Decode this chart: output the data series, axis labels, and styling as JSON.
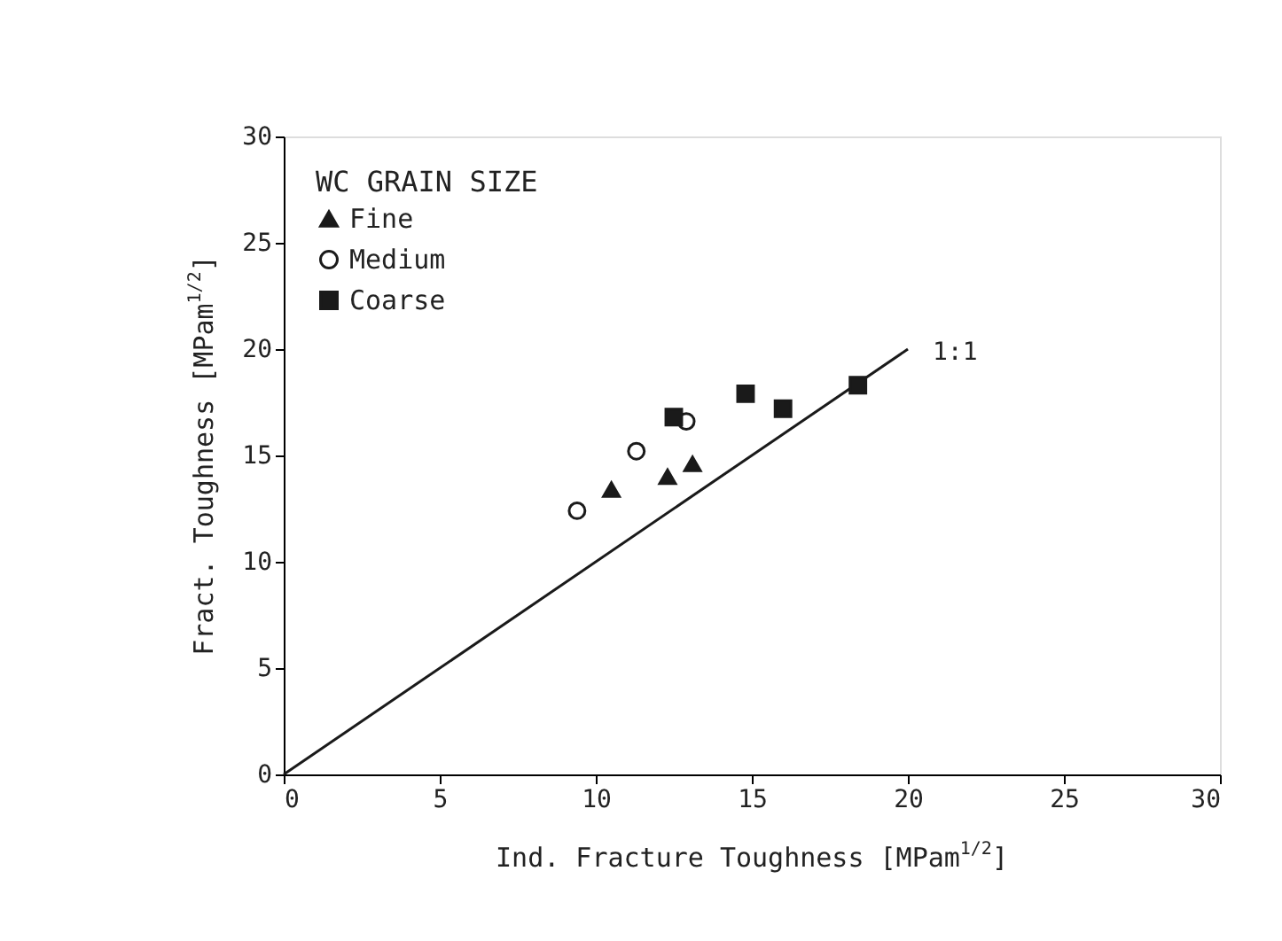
{
  "chart_data": {
    "type": "scatter",
    "xlabel": "Ind. Fracture Toughness [MPam$^{1/2}$]",
    "ylabel": "Fract. Toughness [MPam$^{1/2}$]",
    "legend_title": "WC GRAIN SIZE",
    "xlim": [
      0,
      30
    ],
    "ylim": [
      0,
      30
    ],
    "xticks": [
      0,
      5,
      10,
      15,
      20,
      25,
      30
    ],
    "yticks": [
      0,
      5,
      10,
      15,
      20,
      25,
      30
    ],
    "grid": false,
    "legend": "top left",
    "series": [
      {
        "name": "Fine",
        "color": "#1a1a1a",
        "marker": "triangle",
        "x": [
          10.5,
          12.3,
          13.1
        ],
        "values": [
          13.4,
          14.0,
          14.6
        ]
      },
      {
        "name": "Medium",
        "color": "#1a1a1a",
        "marker": "circle",
        "x": [
          9.4,
          11.3,
          12.9
        ],
        "values": [
          12.4,
          15.2,
          16.6
        ]
      },
      {
        "name": "Coarse",
        "color": "#1a1a1a",
        "marker": "square",
        "x": [
          12.5,
          14.8,
          16.0,
          18.4
        ],
        "values": [
          16.8,
          17.9,
          17.2,
          18.3
        ]
      },
      {
        "type": "line",
        "color": "#1a1a1a",
        "line_style": "solid",
        "marker": "none",
        "x": [
          0,
          20
        ],
        "values": [
          0,
          20
        ]
      }
    ],
    "annotations": [
      {
        "text": "1:1",
        "x": 20,
        "y": 20
      }
    ]
  }
}
